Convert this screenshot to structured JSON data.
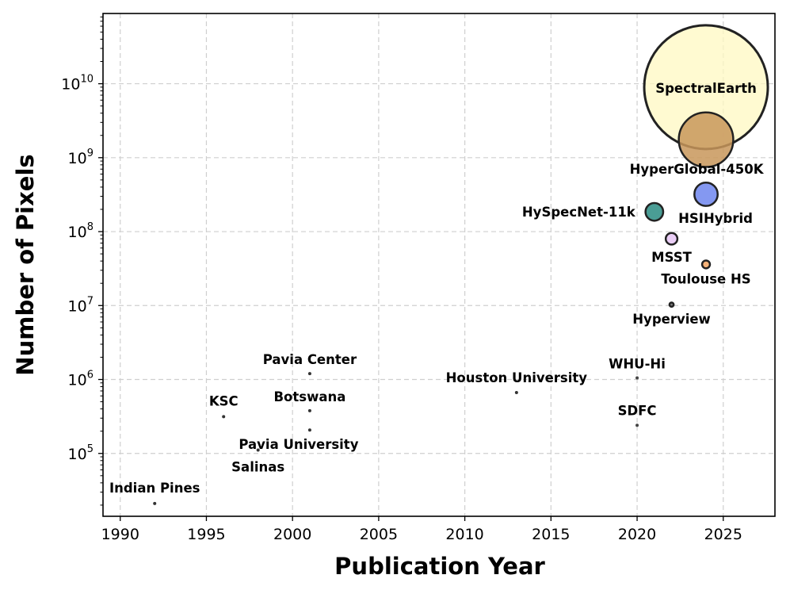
{
  "chart_data": {
    "type": "scatter",
    "title": "",
    "xlabel": "Publication Year",
    "ylabel": "Number of Pixels",
    "xlim": [
      1989,
      2028
    ],
    "ylim_log10": [
      4.15,
      10.95
    ],
    "yscale": "log",
    "grid": true,
    "xticks": [
      1990,
      1995,
      2000,
      2005,
      2010,
      2015,
      2020,
      2025
    ],
    "yticks": [
      {
        "exp": 5,
        "base": "10",
        "sup": "5"
      },
      {
        "exp": 6,
        "base": "10",
        "sup": "6"
      },
      {
        "exp": 7,
        "base": "10",
        "sup": "7"
      },
      {
        "exp": 8,
        "base": "10",
        "sup": "8"
      },
      {
        "exp": 9,
        "base": "10",
        "sup": "9"
      },
      {
        "exp": 10,
        "base": "10",
        "sup": "10"
      }
    ],
    "points": [
      {
        "id": "indian-pines",
        "label": "Indian Pines",
        "year": 1992,
        "pixels": 21025,
        "color": "#333333"
      },
      {
        "id": "ksc",
        "label": "KSC",
        "year": 1996,
        "pixels": 314368,
        "color": "#333333"
      },
      {
        "id": "salinas",
        "label": "Salinas",
        "year": 1998,
        "pixels": 111104,
        "color": "#333333"
      },
      {
        "id": "pavia-center",
        "label": "Pavia Center",
        "year": 2001,
        "pixels": 1201216,
        "color": "#333333"
      },
      {
        "id": "botswana",
        "label": "Botswana",
        "year": 2001,
        "pixels": 377856,
        "color": "#333333"
      },
      {
        "id": "pavia-university",
        "label": "Pavia University",
        "year": 2001,
        "pixels": 207400,
        "color": "#333333"
      },
      {
        "id": "houston-university",
        "label": "Houston University",
        "year": 2013,
        "pixels": 664845,
        "color": "#333333"
      },
      {
        "id": "whu-hi",
        "label": "WHU-Hi",
        "year": 2020,
        "pixels": 1050000,
        "color": "#444444"
      },
      {
        "id": "sdfc",
        "label": "SDFC",
        "year": 2020,
        "pixels": 240000,
        "color": "#444444"
      },
      {
        "id": "hyperview",
        "label": "Hyperview",
        "year": 2022,
        "pixels": 10300000,
        "color": "#666666"
      },
      {
        "id": "toulouse-hs",
        "label": "Toulouse HS",
        "year": 2024,
        "pixels": 36000000,
        "color": "#f4a460"
      },
      {
        "id": "msst",
        "label": "MSST",
        "year": 2022,
        "pixels": 80000000,
        "color": "#e6c6f5"
      },
      {
        "id": "hyspecnet-11k",
        "label": "HySpecNet-11k",
        "year": 2021,
        "pixels": 185000000,
        "color": "#2a8c82"
      },
      {
        "id": "hsihybrid",
        "label": "HSIHybrid",
        "year": 2024,
        "pixels": 320000000,
        "color": "#6f86ee"
      },
      {
        "id": "hyperglobal-450k",
        "label": "HyperGlobal-450K",
        "year": 2024,
        "pixels": 1750000000,
        "color": "#c8965a"
      },
      {
        "id": "spectralearth",
        "label": "SpectralEarth",
        "year": 2024,
        "pixels": 9000000000,
        "color": "#fff8c2"
      }
    ]
  }
}
